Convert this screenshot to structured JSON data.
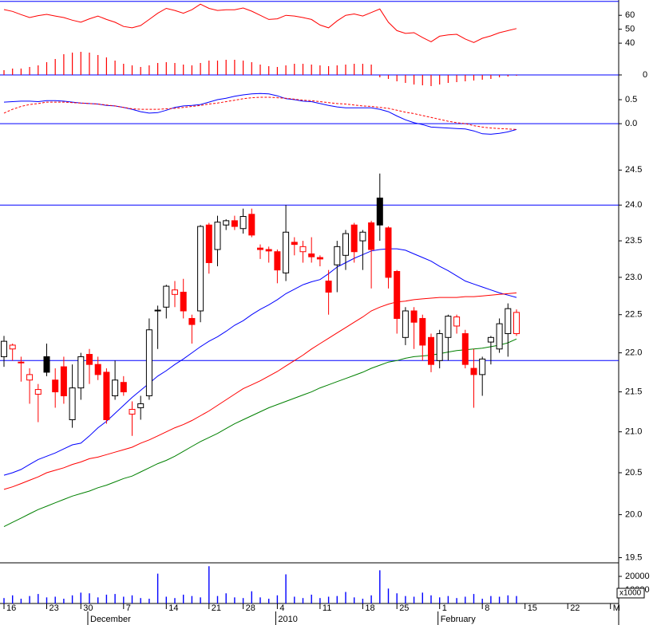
{
  "chart_data": [
    {
      "type": "line",
      "ylim": [
        8,
        71
      ],
      "yticks": [
        40,
        50,
        60
      ],
      "hlines": [
        70
      ],
      "hline_color": "#0000ff",
      "y2lim": [
        -1.6,
        9.4
      ],
      "y2ticks": [
        0
      ],
      "series": [
        {
          "color": "#ff0000",
          "values": [
            64.1,
            62.8,
            60.5,
            58.4,
            59.8,
            60.7,
            59.5,
            58.4,
            56.5,
            55.0,
            57.5,
            59.5,
            57,
            55,
            52,
            51,
            52.7,
            57,
            61.5,
            65,
            63.5,
            61.5,
            64,
            68,
            65,
            63.5,
            64,
            64,
            65.3,
            63,
            60,
            57,
            57.5,
            60,
            59.5,
            58.4,
            57,
            53,
            51,
            56,
            60,
            61,
            59.5,
            62,
            64.5,
            55,
            49,
            47,
            47.5,
            44,
            41,
            45,
            46,
            46.4,
            43,
            40.5,
            43.5,
            45.2,
            47.5,
            49,
            50.5,
            null,
            null,
            null,
            null,
            null,
            null,
            null,
            null,
            null,
            null,
            null
          ]
        },
        {
          "type": "bar",
          "axis": "y2",
          "color": "#ff0000",
          "values": [
            0.6,
            0.8,
            0.8,
            1.0,
            1.2,
            1.6,
            2.0,
            2.6,
            2.8,
            2.9,
            2.8,
            2.5,
            2.2,
            1.8,
            1.4,
            1.2,
            1.0,
            1.2,
            1.5,
            1.6,
            1.5,
            1.3,
            1.2,
            1.5,
            1.8,
            1.8,
            1.9,
            1.9,
            1.8,
            1.6,
            1.3,
            1.1,
            1.0,
            1.2,
            1.4,
            1.4,
            1.3,
            1.2,
            1.1,
            1.2,
            1.3,
            1.4,
            1.4,
            1.3,
            -0.3,
            -0.5,
            -0.8,
            -1.0,
            -1.2,
            -1.3,
            -1.4,
            -1.2,
            -1.0,
            -0.9,
            -0.8,
            -0.7,
            -0.6,
            -0.5,
            -0.3,
            -0.2,
            -0.1,
            null,
            null,
            null,
            null,
            null,
            null,
            null,
            null,
            null,
            null,
            null
          ]
        }
      ]
    },
    {
      "type": "line",
      "ylim": [
        -0.28,
        0.75
      ],
      "yticks": [
        {
          "value": 0,
          "label": "0.0"
        },
        0.5
      ],
      "hlines": [
        0
      ],
      "hline_color": "#0000ff",
      "series": [
        {
          "color": "#0000ff",
          "values": [
            0.45,
            0.46,
            0.47,
            0.47,
            0.46,
            0.48,
            0.48,
            0.47,
            0.45,
            0.43,
            0.42,
            0.41,
            0.38,
            0.37,
            0.34,
            0.3,
            0.25,
            0.22,
            0.23,
            0.28,
            0.34,
            0.37,
            0.38,
            0.4,
            0.45,
            0.5,
            0.53,
            0.57,
            0.6,
            0.62,
            0.63,
            0.62,
            0.58,
            0.52,
            0.5,
            0.47,
            0.46,
            0.42,
            0.38,
            0.35,
            0.33,
            0.33,
            0.33,
            0.33,
            0.3,
            0.25,
            0.16,
            0.08,
            0.02,
            -0.02,
            -0.07,
            -0.08,
            -0.09,
            -0.1,
            -0.11,
            -0.15,
            -0.21,
            -0.22,
            -0.2,
            -0.17,
            -0.12,
            null,
            null,
            null,
            null,
            null,
            null,
            null,
            null,
            null,
            null,
            null
          ]
        },
        {
          "color": "#ff0000",
          "dash": true,
          "values": [
            0.22,
            0.3,
            0.36,
            0.4,
            0.42,
            0.45,
            0.45,
            0.45,
            0.44,
            0.43,
            0.42,
            0.41,
            0.39,
            0.37,
            0.34,
            0.31,
            0.3,
            0.3,
            0.3,
            0.31,
            0.32,
            0.34,
            0.36,
            0.38,
            0.41,
            0.43,
            0.46,
            0.49,
            0.52,
            0.54,
            0.55,
            0.55,
            0.54,
            0.53,
            0.51,
            0.49,
            0.48,
            0.46,
            0.44,
            0.42,
            0.41,
            0.39,
            0.37,
            0.36,
            0.34,
            0.32,
            0.28,
            0.24,
            0.21,
            0.17,
            0.13,
            0.09,
            0.05,
            0.02,
            0,
            -0.04,
            -0.07,
            -0.09,
            -0.1,
            -0.11,
            -0.12,
            null,
            null,
            null,
            null,
            null,
            null,
            null,
            null,
            null,
            null,
            null
          ]
        }
      ]
    },
    {
      "type": "candlestick",
      "log_scale": true,
      "ylim": [
        19.45,
        24.98
      ],
      "yticks": [
        {
          "value": 19.5,
          "label": "19.5"
        },
        {
          "value": 20,
          "label": "20.0"
        },
        20.5,
        {
          "value": 21,
          "label": "21.0"
        },
        21.5,
        {
          "value": 22,
          "label": "22.0"
        },
        22.5,
        {
          "value": 23,
          "label": "23.0"
        },
        23.5,
        {
          "value": 24,
          "label": "24.0"
        },
        24.5
      ],
      "hlines": [
        24.0,
        21.9
      ],
      "hline_color": "#0000ff",
      "up_color": "#000000",
      "down_color": "#ff0000",
      "categories": [
        "16",
        null,
        null,
        null,
        null,
        "23",
        null,
        null,
        null,
        "30",
        null,
        null,
        null,
        null,
        "7",
        null,
        null,
        null,
        null,
        "14",
        null,
        null,
        null,
        null,
        "21",
        null,
        null,
        null,
        "28",
        null,
        null,
        null,
        "4",
        null,
        null,
        null,
        null,
        "11",
        null,
        null,
        null,
        null,
        "18",
        null,
        null,
        null,
        "25",
        null,
        null,
        null,
        null,
        "1",
        null,
        null,
        null,
        null,
        "8",
        null,
        null,
        null,
        null,
        "15",
        null,
        null,
        null,
        null,
        "22",
        null,
        null,
        null,
        null,
        "M"
      ],
      "category_groups": [
        null,
        null,
        null,
        null,
        null,
        null,
        null,
        null,
        null,
        null,
        "December",
        null,
        null,
        null,
        null,
        null,
        null,
        null,
        null,
        null,
        null,
        null,
        null,
        null,
        null,
        null,
        null,
        null,
        null,
        null,
        null,
        null,
        "2010",
        null,
        null,
        null,
        null,
        null,
        null,
        null,
        null,
        null,
        null,
        null,
        null,
        null,
        null,
        null,
        null,
        null,
        null,
        "February",
        null,
        null,
        null,
        null,
        null,
        null,
        null,
        null,
        null,
        null,
        null,
        null,
        null,
        null,
        null,
        null,
        null,
        null,
        null,
        null
      ],
      "open": [
        21.95,
        22.05,
        21.88,
        21.65,
        21.47,
        21.95,
        21.65,
        21.82,
        21.15,
        21.55,
        21.98,
        21.85,
        21.75,
        21.45,
        21.62,
        21.22,
        21.3,
        21.45,
        22.55,
        22.6,
        22.77,
        22.8,
        22.45,
        22.55,
        23.72,
        23.38,
        23.72,
        23.78,
        23.67,
        23.87,
        23.4,
        23.38,
        23.35,
        23.06,
        23.48,
        23.35,
        23.32,
        23.27,
        22.95,
        23.17,
        23.3,
        23.72,
        23.5,
        23.75,
        24.1,
        23.68,
        23.08,
        22.2,
        22.55,
        22.45,
        22.2,
        21.9,
        22.2,
        22.35,
        22.25,
        21.8,
        21.72,
        22.14,
        22.05,
        22.25,
        22.25,
        null,
        null,
        null,
        null,
        null,
        null,
        null,
        null,
        null,
        null,
        null
      ],
      "high": [
        22.22,
        22.12,
        21.95,
        21.8,
        21.6,
        22.12,
        21.8,
        21.95,
        21.85,
        22.0,
        22.05,
        21.95,
        21.8,
        21.9,
        21.7,
        21.38,
        21.45,
        22.45,
        22.62,
        22.9,
        22.95,
        22.98,
        22.5,
        23.72,
        23.75,
        23.85,
        23.8,
        23.85,
        23.95,
        23.95,
        23.45,
        23.42,
        23.38,
        24.0,
        23.55,
        23.5,
        23.55,
        23.3,
        23.1,
        23.5,
        23.65,
        23.75,
        23.65,
        23.78,
        24.45,
        23.7,
        23.1,
        22.6,
        22.6,
        22.5,
        22.25,
        22.3,
        22.5,
        22.5,
        22.3,
        22.05,
        21.95,
        22.22,
        22.45,
        22.65,
        22.57,
        null,
        null,
        null,
        null,
        null,
        null,
        null,
        null,
        null,
        null,
        null
      ],
      "low": [
        21.82,
        21.9,
        21.63,
        21.35,
        21.12,
        21.7,
        21.3,
        21.35,
        21.05,
        21.4,
        21.6,
        21.65,
        21.1,
        21.4,
        21.45,
        20.95,
        21.15,
        21.4,
        22.05,
        22.45,
        22.6,
        22.45,
        22.12,
        22.4,
        23.05,
        23.15,
        23.65,
        23.65,
        23.6,
        23.55,
        23.25,
        23.2,
        22.92,
        22.95,
        23.3,
        23.2,
        23.2,
        23.15,
        22.5,
        22.8,
        23.1,
        23.2,
        23.1,
        22.85,
        23.5,
        22.85,
        22.25,
        22.1,
        22.05,
        21.9,
        21.75,
        21.8,
        21.9,
        22.25,
        21.8,
        21.3,
        21.45,
        21.85,
        22.0,
        21.95,
        22.22,
        null,
        null,
        null,
        null,
        null,
        null,
        null,
        null,
        null,
        null,
        null
      ],
      "close": [
        22.15,
        22.1,
        21.87,
        21.72,
        21.53,
        21.75,
        21.5,
        21.45,
        21.55,
        21.95,
        21.85,
        21.72,
        21.15,
        21.65,
        21.5,
        21.28,
        21.35,
        22.3,
        22.56,
        22.88,
        22.83,
        22.55,
        22.37,
        23.7,
        23.2,
        23.76,
        23.78,
        23.7,
        23.84,
        23.58,
        23.38,
        23.36,
        23.1,
        23.62,
        23.45,
        23.42,
        23.28,
        23.25,
        22.8,
        23.42,
        23.6,
        23.35,
        23.62,
        23.38,
        23.72,
        23.0,
        22.45,
        22.55,
        22.4,
        22.1,
        21.85,
        22.25,
        22.48,
        22.47,
        21.85,
        21.72,
        21.92,
        22.2,
        22.38,
        22.58,
        22.53,
        null,
        null,
        null,
        null,
        null,
        null,
        null,
        null,
        null,
        null,
        null
      ],
      "series": [
        {
          "color": "#0000ff",
          "values": [
            20.47,
            20.5,
            20.54,
            20.6,
            20.66,
            20.7,
            20.74,
            20.79,
            20.84,
            20.86,
            20.95,
            21.05,
            21.13,
            21.23,
            21.33,
            21.43,
            21.52,
            21.61,
            21.7,
            21.77,
            21.85,
            21.92,
            22.0,
            22.08,
            22.15,
            22.21,
            22.28,
            22.36,
            22.42,
            22.5,
            22.57,
            22.63,
            22.7,
            22.78,
            22.84,
            22.9,
            22.94,
            22.97,
            23.05,
            23.14,
            23.2,
            23.26,
            23.31,
            23.36,
            23.38,
            23.39,
            23.39,
            23.37,
            23.32,
            23.27,
            23.22,
            23.15,
            23.09,
            23.02,
            22.95,
            22.91,
            22.87,
            22.83,
            22.79,
            22.76,
            22.73,
            null,
            null,
            null,
            null,
            null,
            null,
            null,
            null,
            null,
            null,
            null
          ]
        },
        {
          "color": "#ff0000",
          "values": [
            20.3,
            20.33,
            20.37,
            20.41,
            20.45,
            20.5,
            20.53,
            20.56,
            20.6,
            20.63,
            20.67,
            20.69,
            20.72,
            20.75,
            20.78,
            20.81,
            20.86,
            20.9,
            20.95,
            21.0,
            21.05,
            21.09,
            21.14,
            21.2,
            21.26,
            21.33,
            21.4,
            21.47,
            21.54,
            21.59,
            21.64,
            21.7,
            21.76,
            21.83,
            21.9,
            21.97,
            22.05,
            22.12,
            22.19,
            22.26,
            22.33,
            22.4,
            22.47,
            22.55,
            22.6,
            22.64,
            22.67,
            22.68,
            22.7,
            22.71,
            22.72,
            22.73,
            22.73,
            22.73,
            22.74,
            22.74,
            22.75,
            22.76,
            22.77,
            22.78,
            22.79,
            null,
            null,
            null,
            null,
            null,
            null,
            null,
            null,
            null,
            null,
            null
          ]
        },
        {
          "color": "#008000",
          "values": [
            19.86,
            19.91,
            19.96,
            20.01,
            20.06,
            20.1,
            20.14,
            20.18,
            20.22,
            20.25,
            20.28,
            20.32,
            20.35,
            20.39,
            20.43,
            20.46,
            20.51,
            20.56,
            20.61,
            20.65,
            20.7,
            20.76,
            20.82,
            20.88,
            20.93,
            20.98,
            21.04,
            21.1,
            21.15,
            21.2,
            21.25,
            21.3,
            21.34,
            21.38,
            21.42,
            21.46,
            21.5,
            21.55,
            21.59,
            21.63,
            21.67,
            21.71,
            21.75,
            21.8,
            21.84,
            21.88,
            21.9,
            21.93,
            21.95,
            21.96,
            21.97,
            21.99,
            22.01,
            22.03,
            22.04,
            22.05,
            22.06,
            22.08,
            22.1,
            22.13,
            22.18,
            null,
            null,
            null,
            null,
            null,
            null,
            null,
            null,
            null,
            null,
            null
          ]
        }
      ]
    },
    {
      "type": "bar",
      "ylim": [
        0,
        30000
      ],
      "yticks": [
        10000,
        20000
      ],
      "ylabel": "x1000",
      "color": "#0000ff",
      "values": [
        4000,
        6000,
        3500,
        5500,
        7000,
        4500,
        5000,
        3500,
        6000,
        8000,
        7500,
        4500,
        6500,
        7000,
        5000,
        6000,
        4000,
        3500,
        22000,
        5000,
        4000,
        6500,
        5500,
        4500,
        27500,
        5500,
        7500,
        4500,
        4000,
        9000,
        4500,
        3500,
        6000,
        21500,
        5000,
        4000,
        6500,
        4000,
        5000,
        5500,
        8500,
        4500,
        3500,
        6000,
        24500,
        11000,
        7500,
        5500,
        5000,
        8000,
        6000,
        4500,
        5500,
        4000,
        5000,
        7000,
        3500,
        5500,
        5000,
        6000,
        5500,
        null,
        null,
        null,
        null,
        null,
        null,
        null,
        null,
        null,
        null,
        null
      ]
    }
  ]
}
